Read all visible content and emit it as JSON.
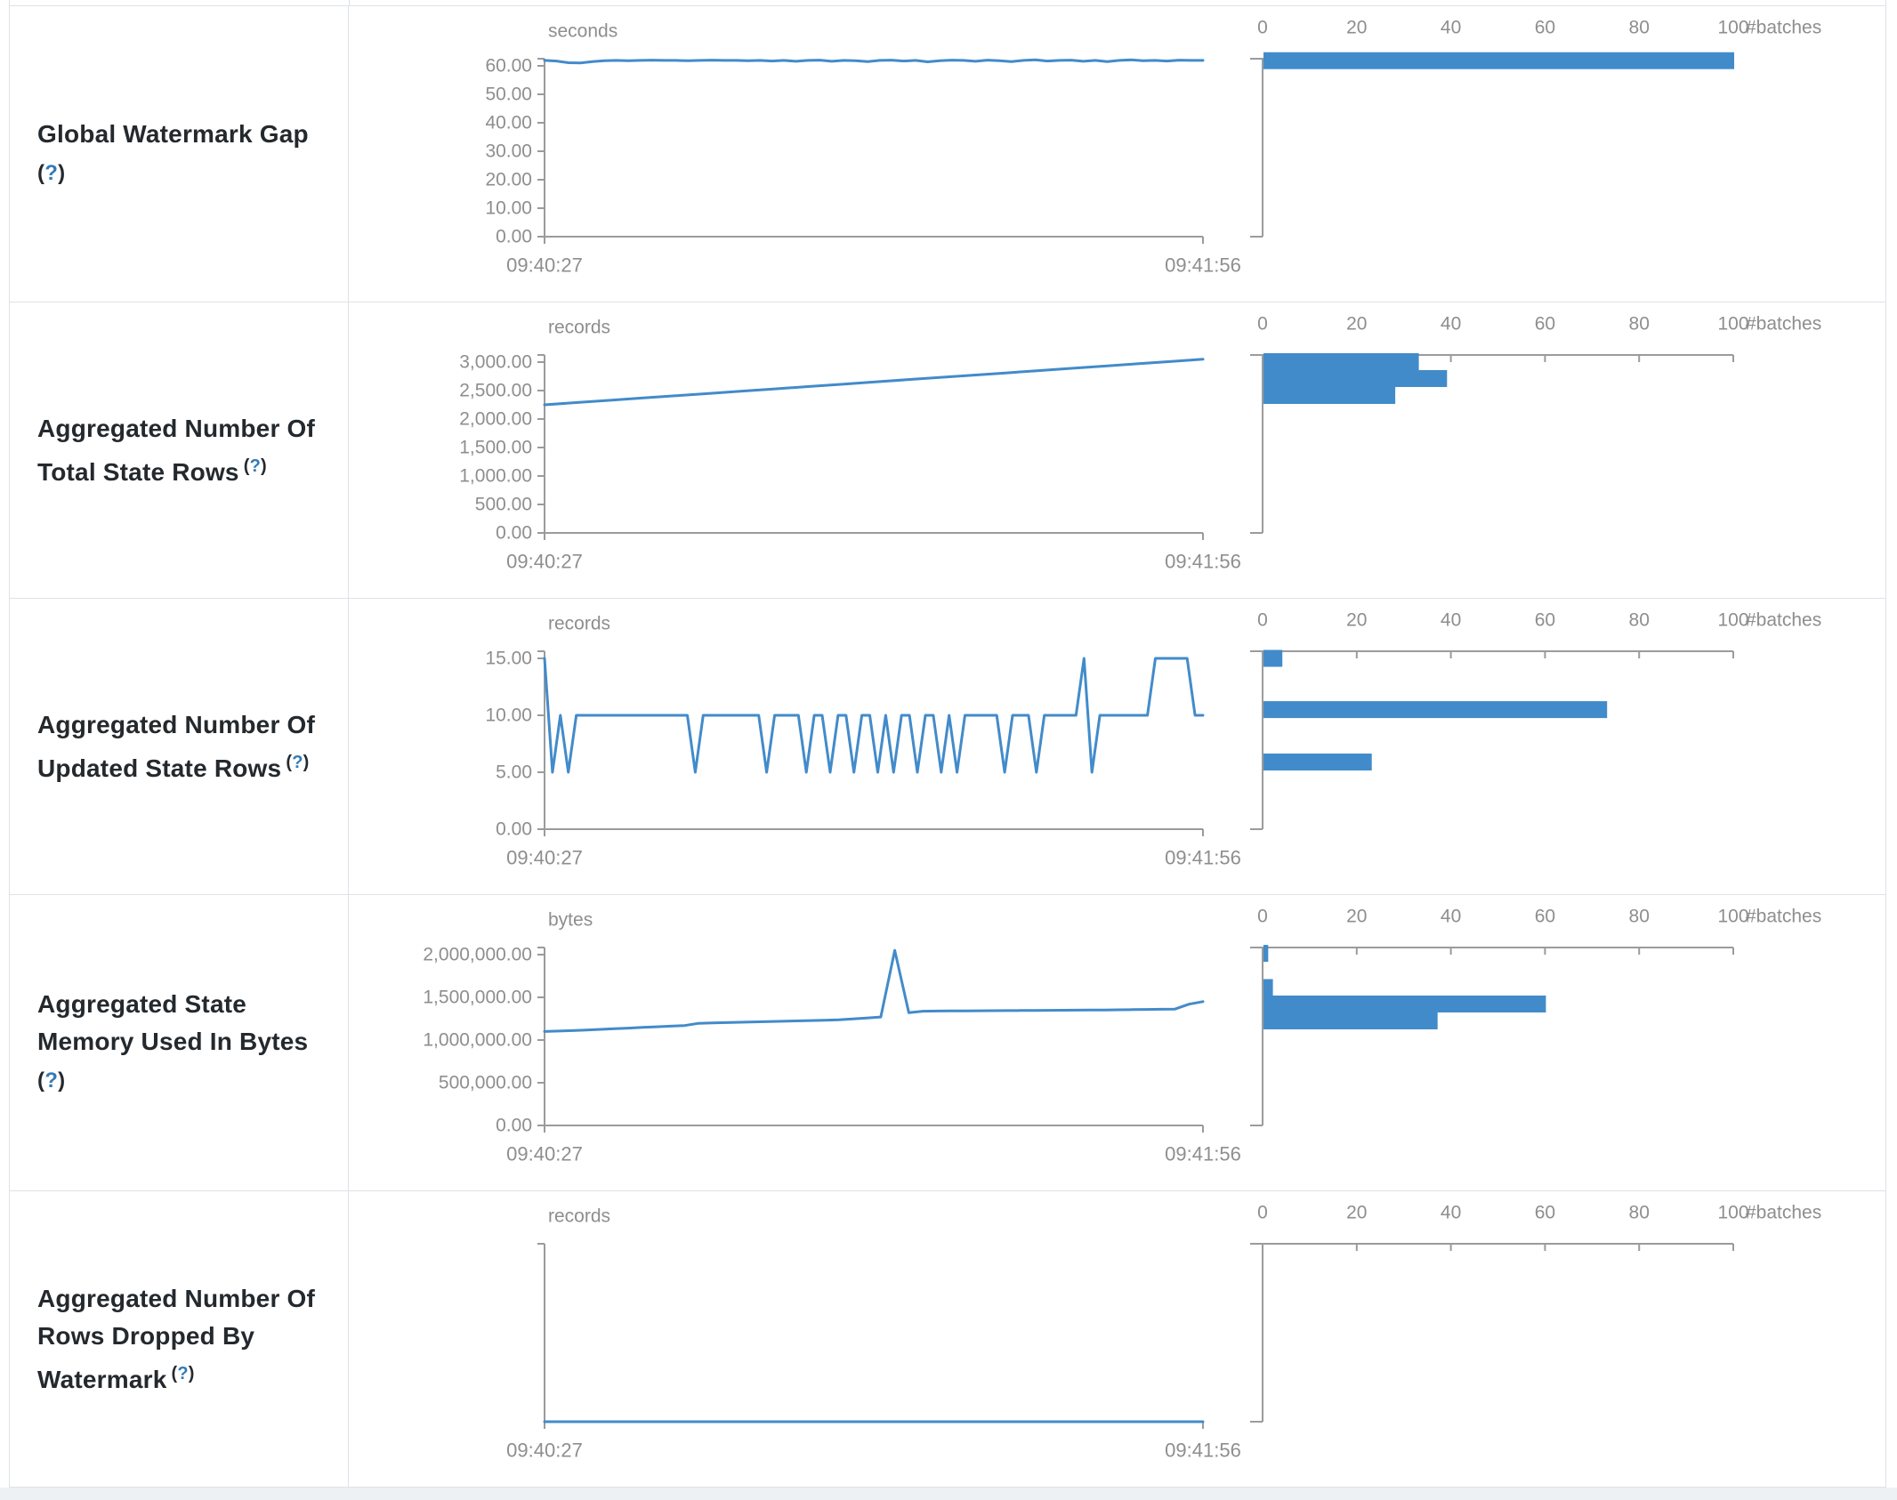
{
  "page": {
    "accent_color": "#428bca",
    "axis_color": "#9b9b9b",
    "tick_text_color": "#8e8e8e",
    "label_color": "#24292e",
    "help_color": "#337ab7",
    "border_color": "#dee2e6"
  },
  "time_axis": {
    "start": "09:40:27",
    "end": "09:41:56"
  },
  "histogram_axis": {
    "tick_labels": [
      "0",
      "20",
      "40",
      "60",
      "80",
      "100"
    ],
    "tick_values": [
      0,
      20,
      40,
      60,
      80,
      100
    ],
    "max": 100,
    "unit": "#batches"
  },
  "chart_data": [
    {
      "metric": "Global Watermark Gap",
      "label_lines": [
        "Global Watermark Gap"
      ],
      "help": "(?)",
      "help_placement": "own-line",
      "type": "line+bar",
      "unit": "seconds",
      "x_start": "09:40:27",
      "x_end": "09:41:56",
      "ylim": [
        0,
        62.5
      ],
      "yticks": [
        {
          "label": "60.00",
          "v": 60
        },
        {
          "label": "50.00",
          "v": 50
        },
        {
          "label": "40.00",
          "v": 40
        },
        {
          "label": "30.00",
          "v": 30
        },
        {
          "label": "20.00",
          "v": 20
        },
        {
          "label": "10.00",
          "v": 10
        },
        {
          "label": "0.00",
          "v": 0
        }
      ],
      "ytick_max": 60,
      "series": [
        61.9,
        61.7,
        61.1,
        61.0,
        61.5,
        61.8,
        61.9,
        61.8,
        61.9,
        62.0,
        61.9,
        61.9,
        61.8,
        61.9,
        62.0,
        61.9,
        61.9,
        61.8,
        61.9,
        61.7,
        61.9,
        61.6,
        61.9,
        62.0,
        61.6,
        61.9,
        61.8,
        61.5,
        61.9,
        62.0,
        61.7,
        61.9,
        61.4,
        61.8,
        62.0,
        61.9,
        61.6,
        62.0,
        61.8,
        61.5,
        61.9,
        62.1,
        61.7,
        61.9,
        62.0,
        61.6,
        61.9,
        61.5,
        61.9,
        62.1,
        61.8,
        61.9,
        61.7,
        62.0,
        61.9,
        61.9
      ],
      "histogram_bars": [
        {
          "count": 100,
          "center": 61.8
        }
      ]
    },
    {
      "metric": "Aggregated Number Of Total State Rows",
      "label_lines": [
        "Aggregated Number Of",
        "Total State Rows"
      ],
      "help": "(?)",
      "help_placement": "inline",
      "type": "line+bar",
      "unit": "records",
      "x_start": "09:40:27",
      "x_end": "09:41:56",
      "ylim": [
        0,
        3054
      ],
      "yticks": [
        {
          "label": "3,000.00",
          "v": 3000
        },
        {
          "label": "2,500.00",
          "v": 2500
        },
        {
          "label": "2,000.00",
          "v": 2000
        },
        {
          "label": "1,500.00",
          "v": 1500
        },
        {
          "label": "1,000.00",
          "v": 1000
        },
        {
          "label": "500.00",
          "v": 500
        },
        {
          "label": "0.00",
          "v": 0
        }
      ],
      "ytick_max": 3000,
      "series": [
        2250,
        2290,
        2330,
        2370,
        2410,
        2450,
        2490,
        2530,
        2570,
        2610,
        2650,
        2690,
        2730,
        2770,
        2810,
        2850,
        2890,
        2930,
        2970,
        3010,
        3050
      ],
      "histogram_bars": [
        {
          "count": 33,
          "center": 3008
        },
        {
          "count": 39,
          "center": 2711
        },
        {
          "count": 28,
          "center": 2414
        }
      ]
    },
    {
      "metric": "Aggregated Number Of Updated State Rows",
      "label_lines": [
        "Aggregated Number Of",
        "Updated State Rows"
      ],
      "help": "(?)",
      "help_placement": "inline",
      "type": "line+bar",
      "unit": "records",
      "x_start": "09:40:27",
      "x_end": "09:41:56",
      "ylim": [
        0,
        15
      ],
      "yticks": [
        {
          "label": "15.00",
          "v": 15
        },
        {
          "label": "10.00",
          "v": 10
        },
        {
          "label": "5.00",
          "v": 5
        },
        {
          "label": "0.00",
          "v": 0
        }
      ],
      "ytick_max": 15,
      "series": [
        15,
        5,
        10,
        5,
        10,
        10,
        10,
        10,
        10,
        10,
        10,
        10,
        10,
        10,
        10,
        10,
        10,
        10,
        10,
        5,
        10,
        10,
        10,
        10,
        10,
        10,
        10,
        10,
        5,
        10,
        10,
        10,
        10,
        5,
        10,
        10,
        5,
        10,
        10,
        5,
        10,
        10,
        5,
        10,
        5,
        10,
        10,
        5,
        10,
        10,
        5,
        10,
        5,
        10,
        10,
        10,
        10,
        10,
        5,
        10,
        10,
        10,
        5,
        10,
        10,
        10,
        10,
        10,
        15,
        5,
        10,
        10,
        10,
        10,
        10,
        10,
        10,
        15,
        15,
        15,
        15,
        15,
        10,
        10
      ],
      "histogram_bars": [
        {
          "count": 4,
          "center": 15
        },
        {
          "count": 73,
          "center": 10.5
        },
        {
          "count": 23,
          "center": 5.9
        }
      ]
    },
    {
      "metric": "Aggregated State Memory Used In Bytes",
      "label_lines": [
        "Aggregated State",
        "Memory Used In Bytes"
      ],
      "help": "(?)",
      "help_placement": "own-line",
      "type": "line+bar",
      "unit": "bytes",
      "x_start": "09:40:27",
      "x_end": "09:41:56",
      "ylim": [
        0,
        2050000
      ],
      "yticks": [
        {
          "label": "2,000,000.00",
          "v": 2000000
        },
        {
          "label": "1,500,000.00",
          "v": 1500000
        },
        {
          "label": "1,000,000.00",
          "v": 1000000
        },
        {
          "label": "500,000.00",
          "v": 500000
        },
        {
          "label": "0.00",
          "v": 0
        }
      ],
      "ytick_max": 2000000,
      "series": [
        1100000,
        1105000,
        1110000,
        1118000,
        1125000,
        1132000,
        1140000,
        1148000,
        1155000,
        1162000,
        1170000,
        1196000,
        1200000,
        1204000,
        1208000,
        1212000,
        1216000,
        1220000,
        1224000,
        1228000,
        1232000,
        1238000,
        1248000,
        1258000,
        1270000,
        2050000,
        1320000,
        1338000,
        1340000,
        1341000,
        1342000,
        1343000,
        1344000,
        1345000,
        1346000,
        1347000,
        1348000,
        1349000,
        1350000,
        1351000,
        1352000,
        1354000,
        1356000,
        1358000,
        1360000,
        1363000,
        1420000,
        1450000
      ],
      "histogram_bars": [
        {
          "count": 1,
          "center": 2015000
        },
        {
          "count": 2,
          "center": 1614600
        },
        {
          "count": 60,
          "center": 1421900
        },
        {
          "count": 37,
          "center": 1224000
        }
      ]
    },
    {
      "metric": "Aggregated Number Of Rows Dropped By Watermark",
      "label_lines": [
        "Aggregated Number Of",
        "Rows Dropped By",
        "Watermark"
      ],
      "help": "(?)",
      "help_placement": "inline",
      "type": "line+bar",
      "unit": "records",
      "x_start": "09:40:27",
      "x_end": "09:41:56",
      "ylim": [
        0,
        0
      ],
      "yticks": [],
      "ytick_max": null,
      "series": [
        0,
        0
      ],
      "histogram_bars": []
    }
  ]
}
